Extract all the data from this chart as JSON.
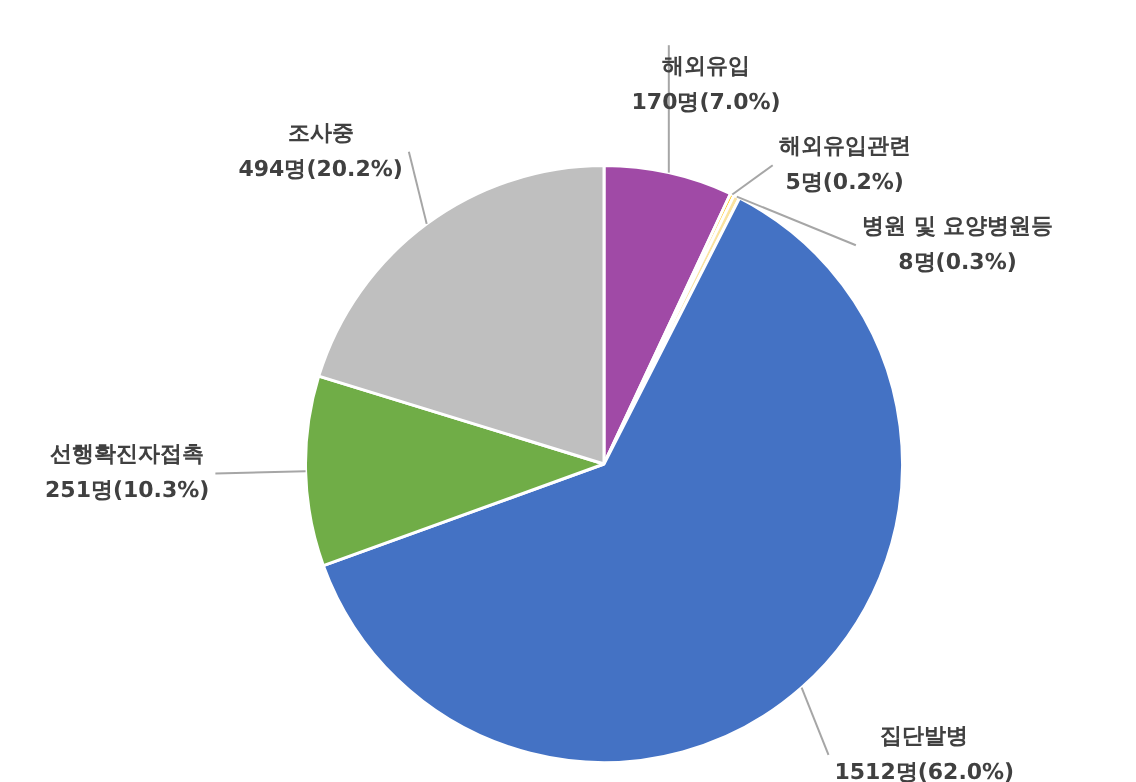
{
  "chart_data": {
    "type": "pie",
    "categories": [
      "해외유입",
      "해외유입관련",
      "병원 및 요양병원등",
      "집단발병",
      "선행확진자접촉",
      "조사중"
    ],
    "values": [
      170,
      5,
      8,
      1512,
      251,
      494
    ],
    "value_labels": [
      "170명(7.0%)",
      "5명(0.2%)",
      "8명(0.3%)",
      "1512명(62.0%)",
      "251명(10.3%)",
      "494명(20.2%)"
    ],
    "colors": [
      "#a04aa6",
      "#ffc000",
      "#fbe3a0",
      "#4472c4",
      "#70ad47",
      "#bfbfbf"
    ],
    "legend": false
  }
}
